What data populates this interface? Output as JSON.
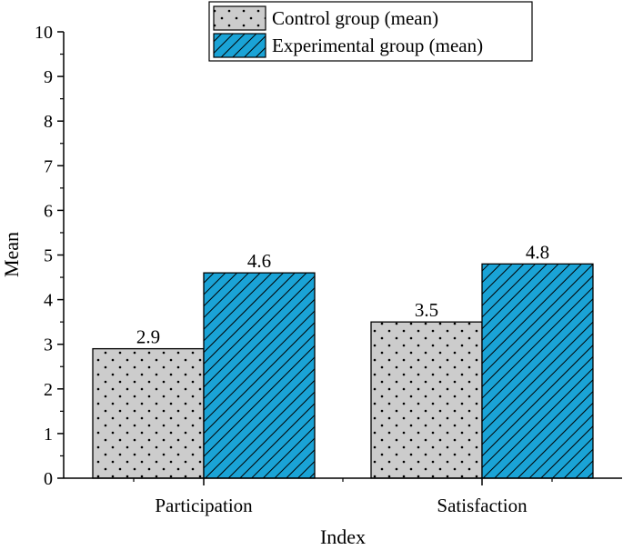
{
  "chart_data": {
    "type": "bar",
    "title": "",
    "xlabel": "Index",
    "ylabel": "Mean",
    "ylim": [
      0,
      10
    ],
    "yticks": [
      0,
      1,
      2,
      3,
      4,
      5,
      6,
      7,
      8,
      9,
      10
    ],
    "categories": [
      "Participation",
      "Satisfaction"
    ],
    "series": [
      {
        "name": "Control group (mean)",
        "values": [
          2.9,
          3.5
        ],
        "labels": [
          "2.9",
          "3.5"
        ],
        "fill": "#cccccc",
        "pattern": "dots"
      },
      {
        "name": "Experimental group (mean)",
        "values": [
          4.6,
          4.8
        ],
        "labels": [
          "4.6",
          "4.8"
        ],
        "fill": "#1aa3d6",
        "pattern": "diagonal-hatch"
      }
    ],
    "legend_position": "top-right",
    "grid": false
  },
  "colors": {
    "control": "#cccccc",
    "experimental": "#1aa3d6",
    "axis": "#000000"
  }
}
